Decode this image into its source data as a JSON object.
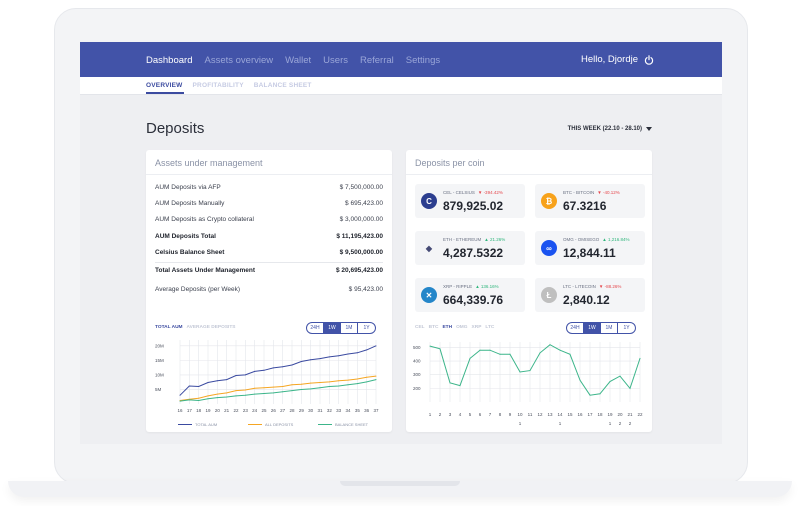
{
  "nav": {
    "items": [
      "Dashboard",
      "Assets overview",
      "Wallet",
      "Users",
      "Referral",
      "Settings"
    ],
    "active": 0,
    "greeting": "Hello, Djordje"
  },
  "subnav": {
    "items": [
      "OVERVIEW",
      "PROFITABILITY",
      "BALANCE SHEET"
    ],
    "active": 0
  },
  "page": {
    "title": "Deposits",
    "week_filter": "THIS WEEK (22.10 - 28.10)"
  },
  "aum": {
    "title": "Assets under management",
    "rows": [
      {
        "label": "AUM Deposits via AFP",
        "value": "$ 7,500,000.00",
        "bold": false
      },
      {
        "label": "AUM Deposits Manually",
        "value": "$ 695,423.00",
        "bold": false
      },
      {
        "label": "AUM Deposits as Crypto collateral",
        "value": "$ 3,000,000.00",
        "bold": false
      },
      {
        "label": "AUM Deposits Total",
        "value": "$ 11,195,423.00",
        "bold": true
      },
      {
        "label": "Celsius Balance Sheet",
        "value": "$ 9,500,000.00",
        "bold": true
      },
      {
        "label": "Total Assets Under Management",
        "value": "$ 20,695,423.00",
        "bold": true
      },
      {
        "label": "Average Deposits (per Week)",
        "value": "$ 95,423.00",
        "bold": false
      }
    ],
    "chart_tabs": [
      "TOTAL AUM",
      "AVERAGE DEPOSITS"
    ],
    "chart_tab_active": 0,
    "periods": [
      "24H",
      "1W",
      "1M",
      "1Y"
    ],
    "period_active": 1,
    "legend": [
      "TOTAL AUM",
      "ALL DEPOSITS",
      "BALANCE SHEET"
    ]
  },
  "coins": {
    "title": "Deposits per coin",
    "items": [
      {
        "name": "CEL - CELSIUS",
        "change": "-394.42%",
        "direction": "down",
        "value": "879,925.02",
        "icon": "celsius-icon",
        "color": "#2c3e8f",
        "glyph": "C"
      },
      {
        "name": "BTC - BITCOIN",
        "change": "-40.12%",
        "direction": "down",
        "value": "67.3216",
        "icon": "bitcoin-icon",
        "color": "#f7a21b",
        "glyph": "₿"
      },
      {
        "name": "ETH - ETHEREUM",
        "change": "21.26%",
        "direction": "up",
        "value": "4,287.5322",
        "icon": "ethereum-icon",
        "color": "#ffffff",
        "glyph": "◆"
      },
      {
        "name": "OMG - OMISEGO",
        "change": "1,216.84%",
        "direction": "up",
        "value": "12,844.11",
        "icon": "omisego-icon",
        "color": "#1a53f0",
        "glyph": "∞"
      },
      {
        "name": "XRP - RIPPLE",
        "change": "136.16%",
        "direction": "up",
        "value": "664,339.76",
        "icon": "ripple-icon",
        "color": "#2486c9",
        "glyph": "✕"
      },
      {
        "name": "LTC - LITECOIN",
        "change": "-88.26%",
        "direction": "down",
        "value": "2,840.12",
        "icon": "litecoin-icon",
        "color": "#bfbfbf",
        "glyph": "Ł"
      }
    ],
    "chart_tabs": [
      "CEL",
      "BTC",
      "ETH",
      "OMG",
      "XRP",
      "LTC"
    ],
    "chart_tab_active": 2,
    "periods": [
      "24H",
      "1W",
      "1M",
      "1Y"
    ],
    "period_active": 1
  },
  "chart_data": [
    {
      "type": "line",
      "title": "",
      "x": [
        "16",
        "17",
        "18",
        "19",
        "20",
        "21",
        "22",
        "23",
        "24",
        "25",
        "26",
        "27",
        "28",
        "29",
        "30",
        "31",
        "32",
        "33",
        "34",
        "35",
        "36",
        "37"
      ],
      "yticks": [
        "20M",
        "15M",
        "10M",
        "5M"
      ],
      "ylim": [
        0,
        22
      ],
      "series": [
        {
          "name": "TOTAL AUM",
          "color": "#3a4aa0",
          "values": [
            3.0,
            6.2,
            6.0,
            7.4,
            8.0,
            8.4,
            9.8,
            10.0,
            11.2,
            11.6,
            12.4,
            12.8,
            13.4,
            14.6,
            15.2,
            15.6,
            16.2,
            16.6,
            17.2,
            17.6,
            18.6,
            20.0
          ]
        },
        {
          "name": "ALL DEPOSITS",
          "color": "#f5a623",
          "values": [
            1.2,
            1.6,
            2.0,
            2.8,
            3.4,
            3.8,
            4.6,
            4.8,
            5.4,
            5.6,
            5.8,
            6.0,
            6.6,
            6.8,
            7.2,
            7.4,
            7.6,
            8.0,
            8.2,
            8.6,
            9.2,
            9.6
          ]
        },
        {
          "name": "BALANCE SHEET",
          "color": "#3cb58a",
          "values": [
            1.0,
            1.4,
            1.2,
            1.8,
            2.2,
            2.4,
            2.8,
            3.0,
            3.4,
            3.6,
            3.8,
            4.2,
            4.6,
            5.0,
            5.2,
            5.6,
            6.0,
            6.2,
            6.6,
            7.0,
            7.6,
            8.4
          ]
        }
      ]
    },
    {
      "type": "line",
      "title": "",
      "x": [
        "1",
        "2",
        "3",
        "4",
        "5",
        "6",
        "7",
        "8",
        "9",
        "10",
        "11",
        "12",
        "13",
        "14",
        "15",
        "16",
        "17",
        "18",
        "19",
        "20",
        "21",
        "22"
      ],
      "x_second_row": {
        "10": "1",
        "14": "1",
        "19": "1",
        "20": "2",
        "21": "2"
      },
      "yticks": [
        "500",
        "400",
        "300",
        "200"
      ],
      "ylim": [
        100,
        540
      ],
      "series": [
        {
          "name": "ETH",
          "color": "#3cb58a",
          "values": [
            510,
            490,
            240,
            220,
            420,
            480,
            480,
            450,
            450,
            320,
            330,
            460,
            520,
            480,
            450,
            260,
            150,
            160,
            250,
            290,
            200,
            420
          ]
        }
      ]
    }
  ]
}
